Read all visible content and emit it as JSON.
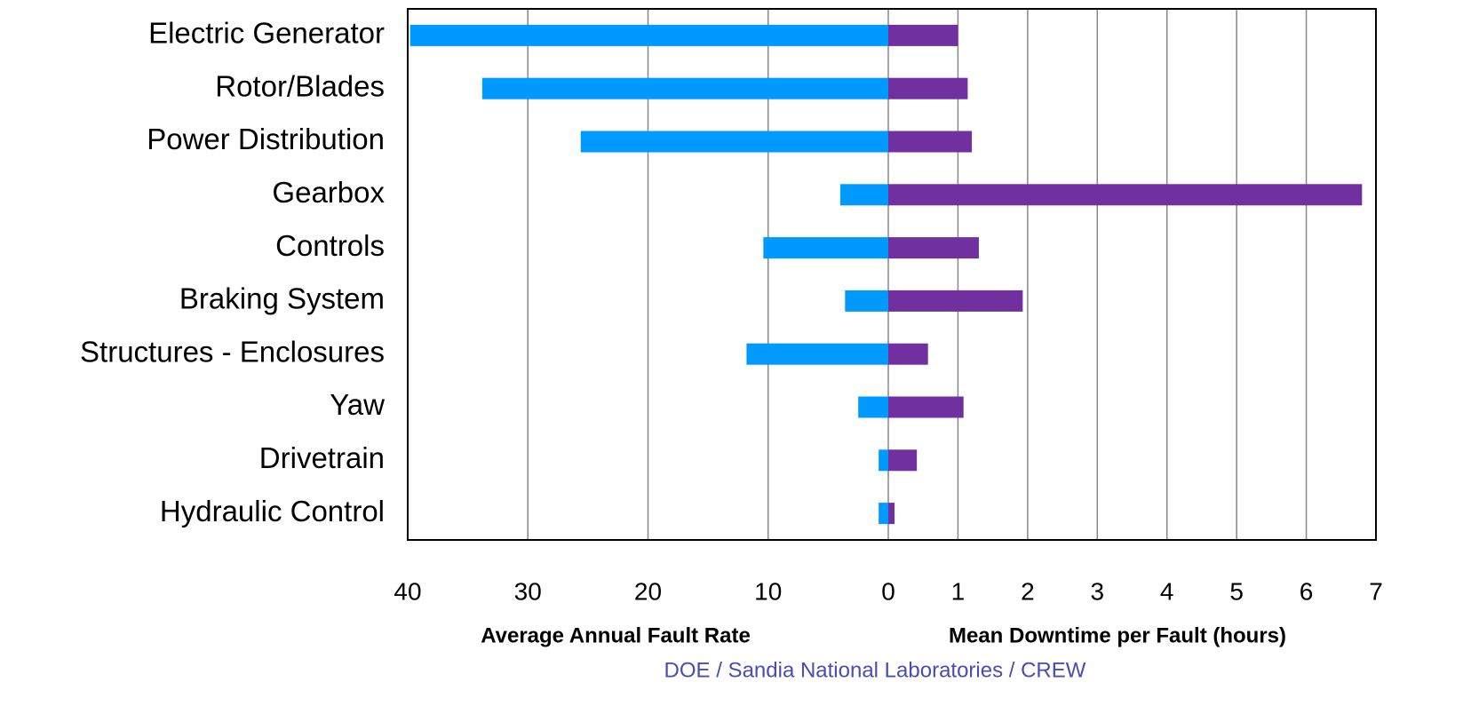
{
  "chart_data": [
    {
      "type": "bar",
      "orientation": "horizontal",
      "x_label": "Average Annual Fault Rate",
      "categories": [
        "Electric Generator",
        "Rotor/Blades",
        "Power Distribution",
        "Gearbox",
        "Controls",
        "Braking System",
        "Structures - Enclosures",
        "Yaw",
        "Drivetrain",
        "Hydraulic Control"
      ],
      "values": [
        39.8,
        33.8,
        25.6,
        4.0,
        10.4,
        3.6,
        11.8,
        2.5,
        0.8,
        0.8
      ],
      "color": "#0099ff",
      "xlim": [
        40,
        0
      ],
      "xticks": [
        40,
        30,
        20,
        10
      ],
      "grid": true
    },
    {
      "type": "bar",
      "orientation": "horizontal",
      "x_label": "Mean Downtime per Fault (hours)",
      "values": [
        1.0,
        1.14,
        1.2,
        6.8,
        1.3,
        1.93,
        0.57,
        1.08,
        0.41,
        0.09
      ],
      "color": "#7030a0",
      "xlim": [
        0,
        7
      ],
      "xticks": [
        0,
        1,
        2,
        3,
        4,
        5,
        6,
        7
      ],
      "grid": true
    }
  ],
  "source": "DOE / Sandia National Laboratories / CREW"
}
